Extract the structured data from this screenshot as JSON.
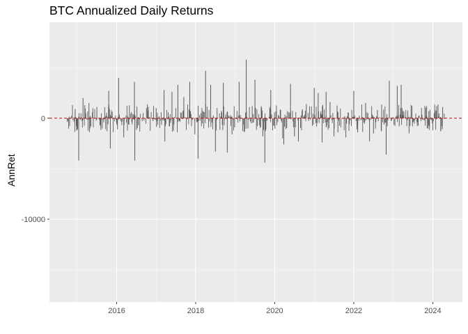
{
  "chart_data": {
    "type": "bar",
    "title": "BTC Annualized Daily Returns",
    "xlabel": "",
    "ylabel": "AnnRet",
    "xlim": [
      2014.3,
      2024.75
    ],
    "ylim": [
      -18200,
      9500
    ],
    "x_ticks": [
      2016,
      2018,
      2020,
      2022,
      2024
    ],
    "x_tick_labels": [
      "2016",
      "2018",
      "2020",
      "2022",
      "2024"
    ],
    "y_ticks": [
      -10000,
      0
    ],
    "y_tick_labels": [
      "-10000",
      "0"
    ],
    "reference_line": {
      "y": 0,
      "style": "dashed",
      "color": "#cc0000"
    },
    "grid": true,
    "bar_color": "#595959",
    "panel_color": "#ebebeb",
    "series": [
      {
        "x": [
          2014.95,
          2014.99,
          2015.04,
          2015.15,
          2015.3,
          2015.5,
          2015.6,
          2015.8,
          2015.84,
          2016.05,
          2016.18,
          2016.3,
          2016.45,
          2016.46,
          2016.55,
          2016.8,
          2017.0,
          2017.2,
          2017.22,
          2017.4,
          2017.55,
          2017.7,
          2017.85,
          2017.98,
          2018.06,
          2018.25,
          2018.38,
          2018.5,
          2018.7,
          2018.8,
          2018.92,
          2019.1,
          2019.28,
          2019.5,
          2019.7,
          2019.75,
          2019.9,
          2020.2,
          2020.23,
          2020.4,
          2020.5,
          2020.6,
          2020.8,
          2021.0,
          2021.1,
          2021.2,
          2021.3,
          2021.4,
          2021.5,
          2021.6,
          2021.8,
          2022.0,
          2022.1,
          2022.3,
          2022.4,
          2022.5,
          2022.6,
          2022.7,
          2022.82,
          2022.9,
          2023.1,
          2023.15,
          2023.2,
          2023.4,
          2023.6,
          2023.9,
          2024.1,
          2024.2,
          2024.25
        ],
        "values": [
          900,
          -1200,
          -4200,
          2000,
          1500,
          1100,
          -900,
          2700,
          -3000,
          4000,
          -1900,
          -600,
          3600,
          -4200,
          -700,
          800,
          1000,
          2800,
          -2300,
          2600,
          3300,
          2100,
          3600,
          -1600,
          -4000,
          4700,
          3300,
          -3300,
          3500,
          -3400,
          -1600,
          3600,
          5800,
          3800,
          -1800,
          -4400,
          2800,
          -2000,
          -2600,
          3400,
          -1800,
          -2300,
          1400,
          3000,
          2500,
          -2400,
          2600,
          1600,
          -1800,
          -1400,
          -1900,
          2700,
          -1400,
          1500,
          -2300,
          -1500,
          800,
          -1300,
          -3600,
          3700,
          3200,
          -800,
          3300,
          -1500,
          -400,
          700,
          1200,
          -1300,
          1100
        ]
      }
    ]
  }
}
